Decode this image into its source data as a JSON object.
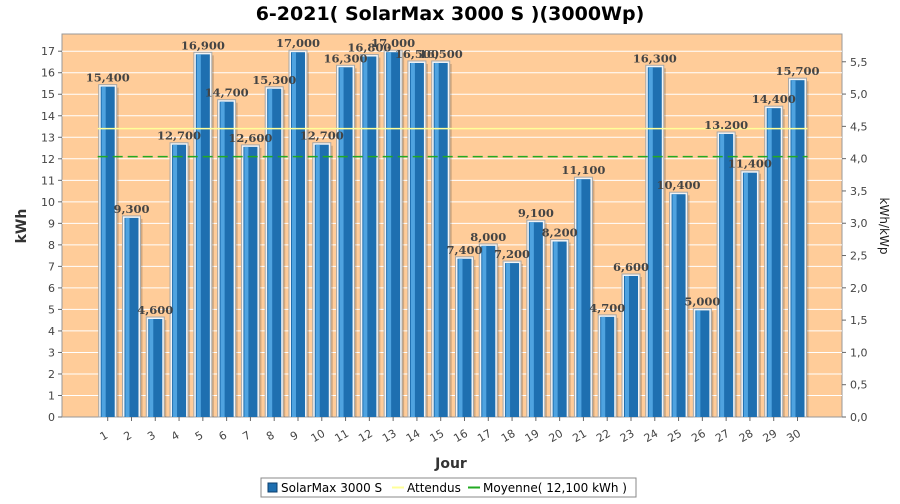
{
  "chart_data": {
    "type": "bar",
    "title": "6-2021( SolarMax 3000 S )(3000Wp)",
    "xlabel": "Jour",
    "ylabel": "kWh",
    "ylabel_right": "kWh/kWp",
    "ylim": [
      0,
      17.8
    ],
    "ylim_right": [
      0,
      5.93
    ],
    "yticks": [
      "0",
      "1",
      "2",
      "3",
      "4",
      "5",
      "6",
      "7",
      "8",
      "9",
      "10",
      "11",
      "12",
      "13",
      "14",
      "15",
      "16",
      "17"
    ],
    "yticks_right": [
      "0,0",
      "0,5",
      "1,0",
      "1,5",
      "2,0",
      "2,5",
      "3,0",
      "3,5",
      "4,0",
      "4,5",
      "5,0",
      "5,5"
    ],
    "categories": [
      "1",
      "2",
      "3",
      "4",
      "5",
      "6",
      "7",
      "8",
      "9",
      "10",
      "11",
      "12",
      "13",
      "14",
      "15",
      "16",
      "17",
      "18",
      "19",
      "20",
      "21",
      "22",
      "23",
      "24",
      "25",
      "26",
      "27",
      "28",
      "29",
      "30"
    ],
    "series": [
      {
        "name": "SolarMax 3000 S",
        "color": "#1e6fb0",
        "values": [
          15.4,
          9.3,
          4.6,
          12.7,
          16.9,
          14.7,
          12.6,
          15.3,
          17.0,
          12.7,
          16.3,
          16.8,
          17.0,
          16.5,
          16.5,
          7.4,
          8.0,
          7.2,
          9.1,
          8.2,
          11.1,
          4.7,
          6.6,
          16.3,
          10.4,
          5.0,
          13.2,
          11.4,
          14.4,
          15.7
        ],
        "labels": [
          "15,400",
          "9,300",
          "4,600",
          "12,700",
          "16,900",
          "14,700",
          "12,600",
          "15,300",
          "17,000",
          "12,700",
          "16,300",
          "16,800",
          "17,000",
          "16,500",
          "16,500",
          "7,400",
          "8,000",
          "7,200",
          "9,100",
          "8,200",
          "11,100",
          "4,700",
          "6,600",
          "16,300",
          "10,400",
          "5,000",
          "13.200",
          "11,400",
          "14,400",
          "15,700"
        ]
      }
    ],
    "reference_lines": [
      {
        "name": "Attendus",
        "value": 13.4,
        "color": "#ffff99",
        "style": "solid"
      },
      {
        "name": "Moyenne( 12,100 kWh )",
        "value": 12.1,
        "color": "#22aa22",
        "style": "dashed"
      }
    ],
    "grid": true,
    "plot_background": "#ffcc99",
    "legend_position": "bottom"
  }
}
